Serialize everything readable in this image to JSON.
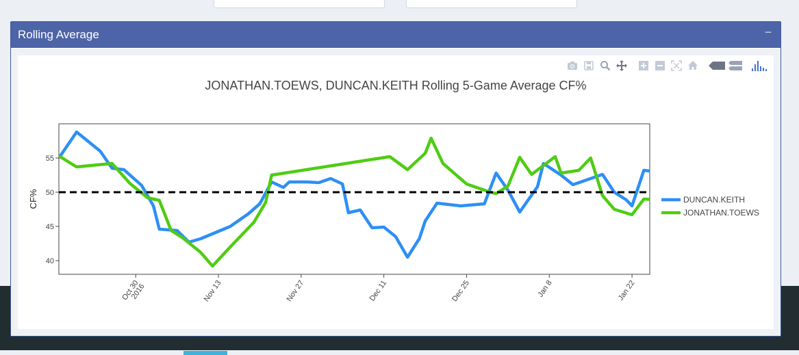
{
  "panel": {
    "title": "Rolling Average",
    "collapse_label": "−"
  },
  "modebar": {
    "icons": [
      "camera-icon",
      "save-icon",
      "zoom-icon",
      "pan-icon",
      "zoom-in-icon",
      "zoom-out-icon",
      "autoscale-icon",
      "home-icon",
      "hover-closest-icon",
      "hover-compare-icon",
      "plotly-logo-icon"
    ]
  },
  "colors": {
    "header": "#4e64a8",
    "duncan": "#2e8ff5",
    "toews": "#4fcc14",
    "reference": "#000000"
  },
  "chart_data": {
    "type": "line",
    "title": "JONATHAN.TOEWS, DUNCAN.KEITH Rolling 5-Game Average CF%",
    "xlabel": "",
    "ylabel": "CF%",
    "x_range": [
      "2016-10-17",
      "2017-01-25"
    ],
    "ylim": [
      38,
      60
    ],
    "yticks": [
      40,
      45,
      50,
      55
    ],
    "xticks": [
      {
        "date": "2016-10-30",
        "label": "Oct 30",
        "label2": "2016"
      },
      {
        "date": "2016-11-13",
        "label": "Nov 13",
        "label2": ""
      },
      {
        "date": "2016-11-27",
        "label": "Nov 27",
        "label2": ""
      },
      {
        "date": "2016-12-11",
        "label": "Dec 11",
        "label2": ""
      },
      {
        "date": "2016-12-25",
        "label": "Dec 25",
        "label2": ""
      },
      {
        "date": "2017-01-08",
        "label": "Jan 8",
        "label2": ""
      },
      {
        "date": "2017-01-22",
        "label": "Jan 22",
        "label2": ""
      }
    ],
    "reference_line": 50,
    "legend_position": "right",
    "series": [
      {
        "name": "DUNCAN.KEITH",
        "color": "#2e8ff5",
        "points": [
          [
            "2016-10-17",
            55.0
          ],
          [
            "2016-10-20",
            58.8
          ],
          [
            "2016-10-24",
            56.0
          ],
          [
            "2016-10-26",
            53.5
          ],
          [
            "2016-10-28",
            53.3
          ],
          [
            "2016-10-31",
            51.0
          ],
          [
            "2016-11-02",
            48.0
          ],
          [
            "2016-11-03",
            44.6
          ],
          [
            "2016-11-06",
            44.4
          ],
          [
            "2016-11-08",
            42.7
          ],
          [
            "2016-11-10",
            43.2
          ],
          [
            "2016-11-15",
            45.0
          ],
          [
            "2016-11-18",
            46.8
          ],
          [
            "2016-11-20",
            48.3
          ],
          [
            "2016-11-22",
            51.5
          ],
          [
            "2016-11-24",
            50.7
          ],
          [
            "2016-11-25",
            51.5
          ],
          [
            "2016-11-28",
            51.5
          ],
          [
            "2016-11-30",
            51.4
          ],
          [
            "2016-12-02",
            52.0
          ],
          [
            "2016-12-04",
            51.2
          ],
          [
            "2016-12-05",
            47.0
          ],
          [
            "2016-12-07",
            47.4
          ],
          [
            "2016-12-09",
            44.8
          ],
          [
            "2016-12-11",
            44.9
          ],
          [
            "2016-12-13",
            43.5
          ],
          [
            "2016-12-15",
            40.5
          ],
          [
            "2016-12-17",
            43.2
          ],
          [
            "2016-12-18",
            45.8
          ],
          [
            "2016-12-20",
            48.4
          ],
          [
            "2016-12-24",
            48.0
          ],
          [
            "2016-12-28",
            48.3
          ],
          [
            "2016-12-30",
            52.8
          ],
          [
            "2017-01-01",
            50.3
          ],
          [
            "2017-01-03",
            47.1
          ],
          [
            "2017-01-06",
            50.8
          ],
          [
            "2017-01-07",
            54.2
          ],
          [
            "2017-01-10",
            52.5
          ],
          [
            "2017-01-12",
            51.1
          ],
          [
            "2017-01-14",
            51.7
          ],
          [
            "2017-01-17",
            52.6
          ],
          [
            "2017-01-19",
            50.0
          ],
          [
            "2017-01-21",
            48.9
          ],
          [
            "2017-01-22",
            48.0
          ],
          [
            "2017-01-24",
            53.2
          ],
          [
            "2017-01-26",
            53.0
          ],
          [
            "2017-01-28",
            54.9
          ]
        ]
      },
      {
        "name": "JONATHAN.TOEWS",
        "color": "#4fcc14",
        "points": [
          [
            "2016-10-17",
            55.3
          ],
          [
            "2016-10-20",
            53.7
          ],
          [
            "2016-10-26",
            54.2
          ],
          [
            "2016-10-29",
            51.3
          ],
          [
            "2016-11-01",
            49.2
          ],
          [
            "2016-11-03",
            48.8
          ],
          [
            "2016-11-05",
            44.4
          ],
          [
            "2016-11-07",
            43.3
          ],
          [
            "2016-11-10",
            41.2
          ],
          [
            "2016-11-12",
            39.2
          ],
          [
            "2016-11-15",
            42.0
          ],
          [
            "2016-11-19",
            45.6
          ],
          [
            "2016-11-21",
            48.5
          ],
          [
            "2016-11-22",
            52.5
          ],
          [
            "2016-12-12",
            55.2
          ],
          [
            "2016-12-15",
            53.3
          ],
          [
            "2016-12-18",
            55.7
          ],
          [
            "2016-12-19",
            57.9
          ],
          [
            "2016-12-21",
            54.2
          ],
          [
            "2016-12-25",
            51.2
          ],
          [
            "2016-12-29",
            50.0
          ],
          [
            "2016-12-30",
            49.8
          ],
          [
            "2017-01-01",
            50.9
          ],
          [
            "2017-01-03",
            55.1
          ],
          [
            "2017-01-05",
            52.6
          ],
          [
            "2017-01-09",
            55.2
          ],
          [
            "2017-01-10",
            52.8
          ],
          [
            "2017-01-13",
            53.2
          ],
          [
            "2017-01-15",
            55.0
          ],
          [
            "2017-01-17",
            49.5
          ],
          [
            "2017-01-19",
            47.5
          ],
          [
            "2017-01-22",
            46.7
          ],
          [
            "2017-01-24",
            49.0
          ],
          [
            "2017-01-26",
            48.9
          ],
          [
            "2017-01-28",
            47.7
          ],
          [
            "2017-01-30",
            50.0
          ]
        ]
      }
    ]
  }
}
